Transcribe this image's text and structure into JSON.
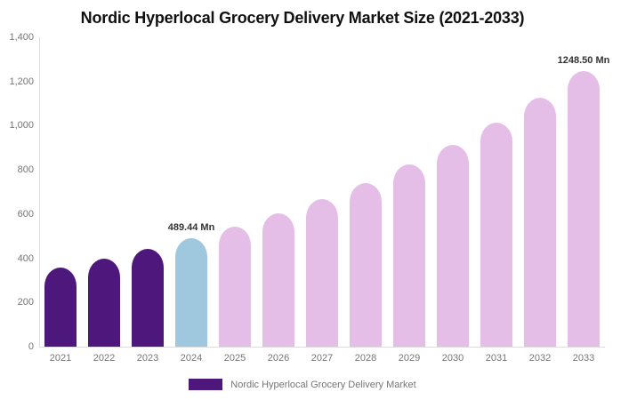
{
  "title": "Nordic Hyperlocal Grocery Delivery Market Size (2021-2033)",
  "legend": {
    "label": "Nordic Hyperlocal Grocery Delivery Market",
    "swatch_color": "#4E177C"
  },
  "colors": {
    "historical_bar": "#4E177C",
    "current_year_bar": "#9FC8DF",
    "forecast_bar": "#E4BEE7",
    "axis_line": "#DDDDDD",
    "tick_text": "#757575",
    "data_label_text": "#333333",
    "title_text": "#111111",
    "background": "#FFFFFF"
  },
  "chart_data": {
    "type": "bar",
    "title": "Nordic Hyperlocal Grocery Delivery Market Size (2021-2033)",
    "unit": "Mn",
    "categories": [
      "2021",
      "2022",
      "2023",
      "2024",
      "2025",
      "2026",
      "2027",
      "2028",
      "2029",
      "2030",
      "2031",
      "2032",
      "2033"
    ],
    "values": [
      358.2,
      397.5,
      441.1,
      489.44,
      543.1,
      602.7,
      668.8,
      742.1,
      823.5,
      913.8,
      1014.0,
      1125.1,
      1248.5
    ],
    "bar_colors": [
      "#4E177C",
      "#4E177C",
      "#4E177C",
      "#9FC8DF",
      "#E4BEE7",
      "#E4BEE7",
      "#E4BEE7",
      "#E4BEE7",
      "#E4BEE7",
      "#E4BEE7",
      "#E4BEE7",
      "#E4BEE7",
      "#E4BEE7"
    ],
    "annotations": [
      {
        "category": "2024",
        "text": "489.44 Mn"
      },
      {
        "category": "2033",
        "text": "1248.50 Mn"
      }
    ],
    "y_ticks": [
      "0",
      "200",
      "400",
      "600",
      "800",
      "1,000",
      "1,200",
      "1,400"
    ],
    "ylim": [
      0,
      1400
    ],
    "xlabel": "",
    "ylabel": "",
    "grid": false,
    "legend_position": "bottom",
    "legend_entries": [
      "Nordic Hyperlocal Grocery Delivery Market"
    ]
  }
}
